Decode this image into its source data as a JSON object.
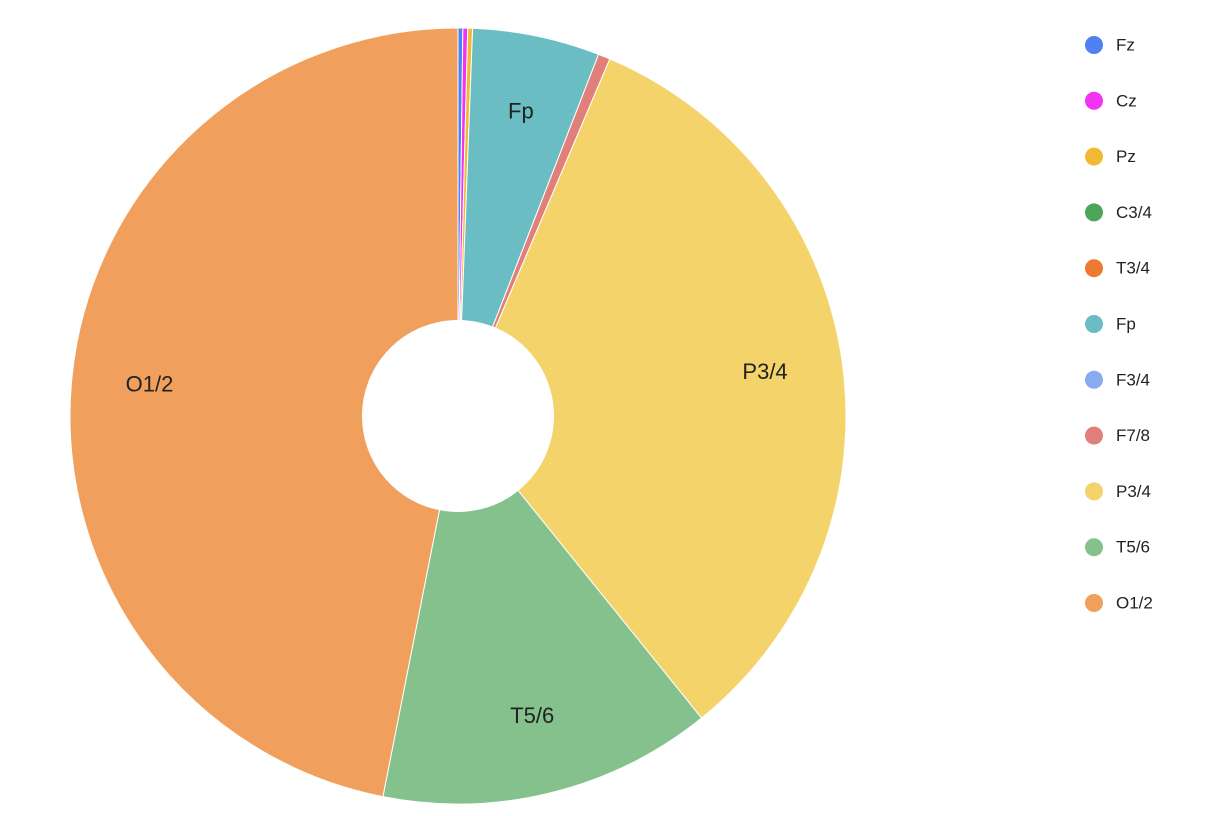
{
  "chart_data": {
    "type": "donut",
    "categories": [
      "Fz",
      "Cz",
      "Pz",
      "C3/4",
      "T3/4",
      "Fp",
      "F3/4",
      "F7/8",
      "P3/4",
      "T5/6",
      "O1/2"
    ],
    "values": [
      0.2,
      0.2,
      0.2,
      0,
      0,
      5.3,
      0,
      0.5,
      32.8,
      13.9,
      46.9
    ],
    "colors": [
      "#4f81f0",
      "#f233f2",
      "#f2b935",
      "#4da55a",
      "#ee7a31",
      "#6bbdc4",
      "#8aaaf0",
      "#e1807a",
      "#f3d36a",
      "#85c18d",
      "#f0a05c"
    ],
    "legend": "right"
  }
}
